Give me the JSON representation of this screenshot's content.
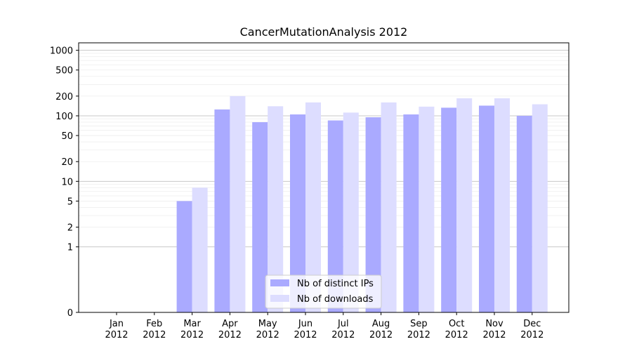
{
  "chart_data": {
    "type": "bar",
    "title": "CancerMutationAnalysis 2012",
    "xlabel": "",
    "ylabel": "",
    "y_scale": "symlog",
    "ylim": [
      0,
      1300
    ],
    "y_ticks": [
      0,
      1,
      2,
      5,
      10,
      20,
      50,
      100,
      200,
      500,
      1000
    ],
    "y_tick_labels": [
      "0",
      "1",
      "2",
      "5",
      "10",
      "20",
      "50",
      "100",
      "200",
      "500",
      "1000"
    ],
    "categories": [
      "Jan\n2012",
      "Feb\n2012",
      "Mar\n2012",
      "Apr\n2012",
      "May\n2012",
      "Jun\n2012",
      "Jul\n2012",
      "Aug\n2012",
      "Sep\n2012",
      "Oct\n2012",
      "Nov\n2012",
      "Dec\n2012"
    ],
    "series": [
      {
        "name": "Nb of distinct IPs",
        "color": "#aaaaff",
        "values": [
          0,
          0,
          5,
          125,
          80,
          105,
          85,
          95,
          105,
          133,
          143,
          100
        ]
      },
      {
        "name": "Nb of downloads",
        "color": "#ddddff",
        "values": [
          0,
          0,
          8,
          200,
          140,
          160,
          112,
          160,
          138,
          185,
          185,
          150
        ]
      }
    ],
    "legend_position": "lower-center",
    "grid": "horizontal"
  }
}
